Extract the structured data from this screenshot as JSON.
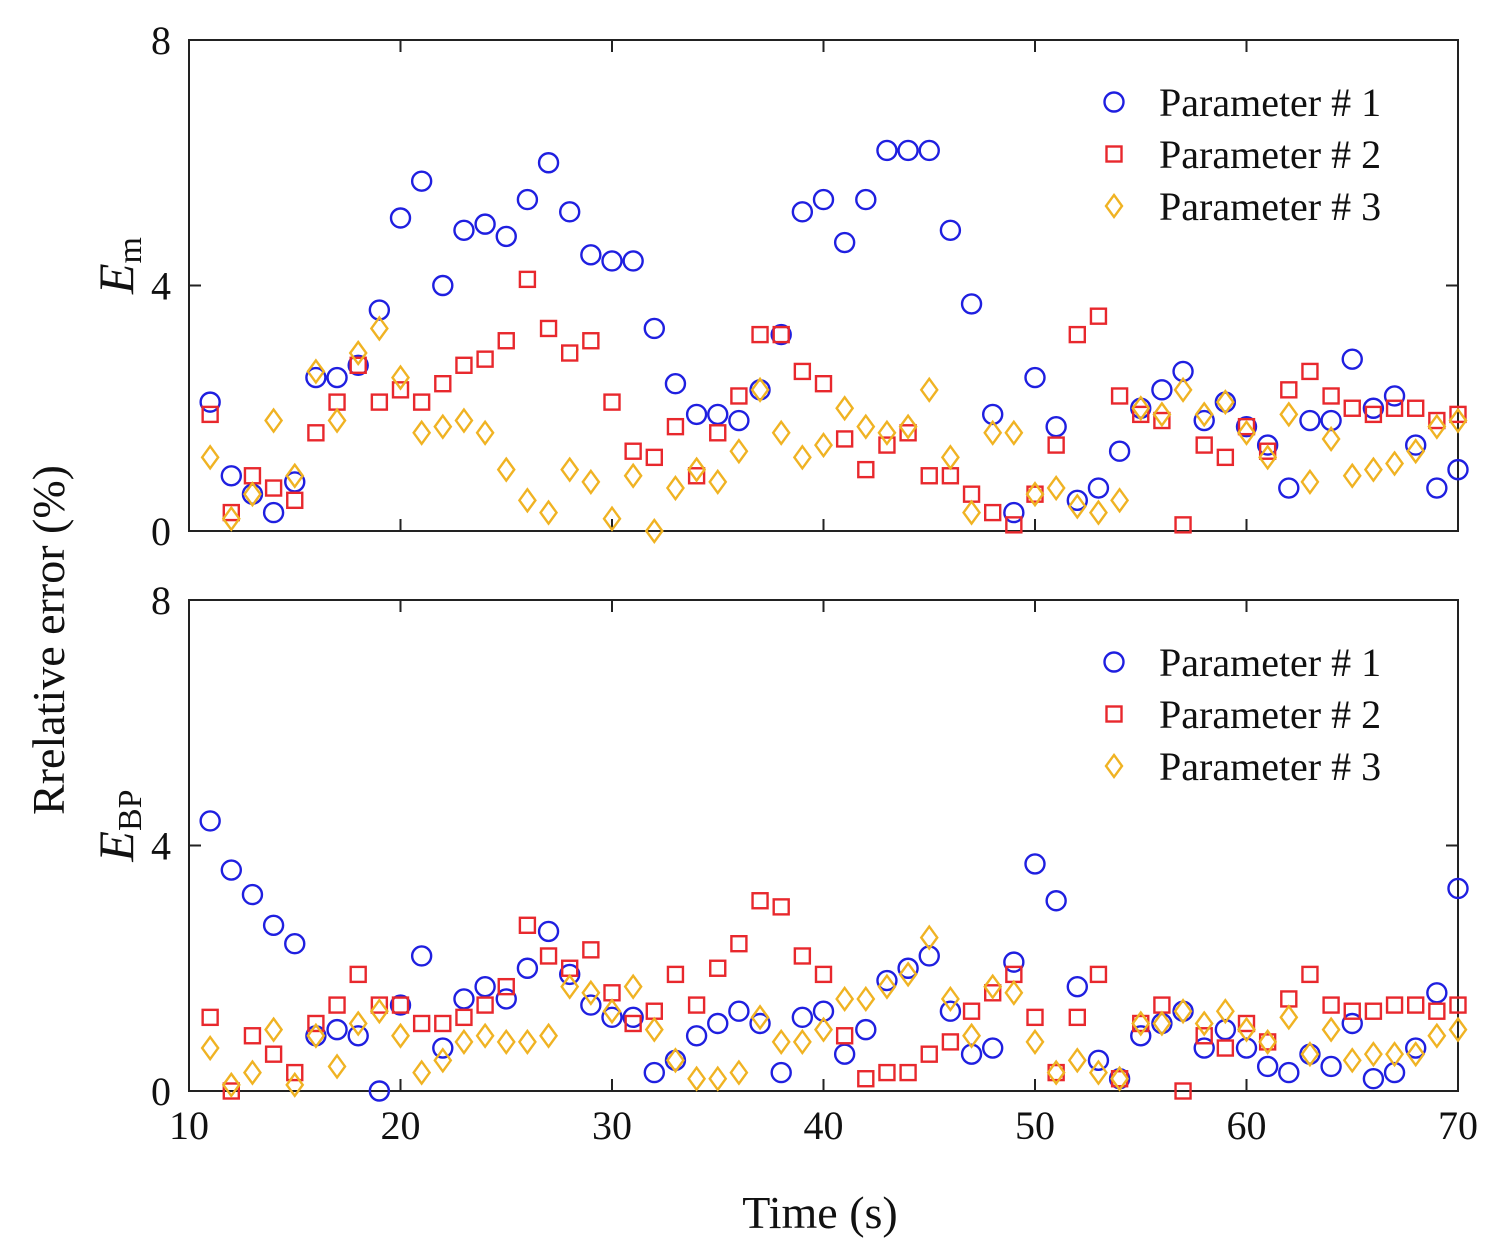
{
  "chart_data": [
    {
      "type": "scatter",
      "panel_label_main": "E",
      "panel_label_sub": "m",
      "xlim": [
        10,
        70
      ],
      "ylim": [
        0,
        8
      ],
      "x_ticks": [
        "10",
        "20",
        "30",
        "40",
        "50",
        "60",
        "70"
      ],
      "y_ticks": [
        "0",
        "4",
        "8"
      ],
      "legend_position": "top-right",
      "grid": false,
      "x": [
        11,
        12,
        13,
        14,
        15,
        16,
        17,
        18,
        19,
        20,
        21,
        22,
        23,
        24,
        25,
        26,
        27,
        28,
        29,
        30,
        31,
        32,
        33,
        34,
        35,
        36,
        37,
        38,
        39,
        40,
        41,
        42,
        43,
        44,
        45,
        46,
        47,
        48,
        49,
        50,
        51,
        52,
        53,
        54,
        55,
        56,
        57,
        58,
        59,
        60,
        61,
        62,
        63,
        64,
        65,
        66,
        67,
        68,
        69,
        70
      ],
      "series": [
        {
          "name": "Parameter # 1",
          "marker": "circle",
          "color": "#1f1fe0",
          "values": [
            2.1,
            0.9,
            0.6,
            0.3,
            0.8,
            2.5,
            2.5,
            2.7,
            3.6,
            5.1,
            5.7,
            4.0,
            4.9,
            5.0,
            4.8,
            5.4,
            6.0,
            5.2,
            4.5,
            4.4,
            4.4,
            3.3,
            2.4,
            1.9,
            1.9,
            1.8,
            2.3,
            3.2,
            5.2,
            5.4,
            4.7,
            5.4,
            6.2,
            6.2,
            6.2,
            4.9,
            3.7,
            1.9,
            0.3,
            2.5,
            1.7,
            0.5,
            0.7,
            1.3,
            2.0,
            2.3,
            2.6,
            1.8,
            2.1,
            1.7,
            1.4,
            0.7,
            1.8,
            1.8,
            2.8,
            2.0,
            2.2,
            1.4,
            0.7,
            1.0
          ]
        },
        {
          "name": "Parameter # 2",
          "marker": "square",
          "color": "#e8282d",
          "values": [
            1.9,
            0.3,
            0.9,
            0.7,
            0.5,
            1.6,
            2.1,
            2.7,
            2.1,
            2.3,
            2.1,
            2.4,
            2.7,
            2.8,
            3.1,
            4.1,
            3.3,
            2.9,
            3.1,
            2.1,
            1.3,
            1.2,
            1.7,
            0.9,
            1.6,
            2.2,
            3.2,
            3.2,
            2.6,
            2.4,
            1.5,
            1.0,
            1.4,
            1.6,
            0.9,
            0.9,
            0.6,
            0.3,
            0.1,
            0.6,
            1.4,
            3.2,
            3.5,
            2.2,
            1.9,
            1.8,
            0.1,
            1.4,
            1.2,
            1.7,
            1.3,
            2.3,
            2.6,
            2.2,
            2.0,
            1.9,
            2.0,
            2.0,
            1.8,
            1.9
          ]
        },
        {
          "name": "Parameter # 3",
          "marker": "diamond",
          "color": "#f0b323",
          "values": [
            1.2,
            0.2,
            0.6,
            1.8,
            0.9,
            2.6,
            1.8,
            2.9,
            3.3,
            2.5,
            1.6,
            1.7,
            1.8,
            1.6,
            1.0,
            0.5,
            0.3,
            1.0,
            0.8,
            0.2,
            0.9,
            0.0,
            0.7,
            1.0,
            0.8,
            1.3,
            2.3,
            1.6,
            1.2,
            1.4,
            2.0,
            1.7,
            1.6,
            1.7,
            2.3,
            1.2,
            0.3,
            1.6,
            1.6,
            0.6,
            0.7,
            0.4,
            0.3,
            0.5,
            2.0,
            1.9,
            2.3,
            1.9,
            2.1,
            1.6,
            1.2,
            1.9,
            0.8,
            1.5,
            0.9,
            1.0,
            1.1,
            1.3,
            1.7,
            1.8
          ]
        }
      ]
    },
    {
      "type": "scatter",
      "panel_label_main": "E",
      "panel_label_sub": "BP",
      "xlim": [
        10,
        70
      ],
      "ylim": [
        0,
        8
      ],
      "x_ticks": [
        "10",
        "20",
        "30",
        "40",
        "50",
        "60",
        "70"
      ],
      "y_ticks": [
        "0",
        "4",
        "8"
      ],
      "legend_position": "top-right",
      "grid": false,
      "x": [
        11,
        12,
        13,
        14,
        15,
        16,
        17,
        18,
        19,
        20,
        21,
        22,
        23,
        24,
        25,
        26,
        27,
        28,
        29,
        30,
        31,
        32,
        33,
        34,
        35,
        36,
        37,
        38,
        39,
        40,
        41,
        42,
        43,
        44,
        45,
        46,
        47,
        48,
        49,
        50,
        51,
        52,
        53,
        54,
        55,
        56,
        57,
        58,
        59,
        60,
        61,
        62,
        63,
        64,
        65,
        66,
        67,
        68,
        69,
        70
      ],
      "series": [
        {
          "name": "Parameter # 1",
          "marker": "circle",
          "color": "#1f1fe0",
          "values": [
            4.4,
            3.6,
            3.2,
            2.7,
            2.4,
            0.9,
            1.0,
            0.9,
            0.0,
            1.4,
            2.2,
            0.7,
            1.5,
            1.7,
            1.5,
            2.0,
            2.6,
            1.9,
            1.4,
            1.2,
            1.2,
            0.3,
            0.5,
            0.9,
            1.1,
            1.3,
            1.1,
            0.3,
            1.2,
            1.3,
            0.6,
            1.0,
            1.8,
            2.0,
            2.2,
            1.3,
            0.6,
            0.7,
            2.1,
            3.7,
            3.1,
            1.7,
            0.5,
            0.2,
            0.9,
            1.1,
            1.3,
            0.7,
            1.0,
            0.7,
            0.4,
            0.3,
            0.6,
            0.4,
            1.1,
            0.2,
            0.3,
            0.7,
            1.6,
            3.3
          ]
        },
        {
          "name": "Parameter # 2",
          "marker": "square",
          "color": "#e8282d",
          "values": [
            1.2,
            0.0,
            0.9,
            0.6,
            0.3,
            1.1,
            1.4,
            1.9,
            1.4,
            1.4,
            1.1,
            1.1,
            1.2,
            1.4,
            1.7,
            2.7,
            2.2,
            2.0,
            2.3,
            1.6,
            1.1,
            1.3,
            1.9,
            1.4,
            2.0,
            2.4,
            3.1,
            3.0,
            2.2,
            1.9,
            0.9,
            0.2,
            0.3,
            0.3,
            0.6,
            0.8,
            1.3,
            1.6,
            1.9,
            1.2,
            0.3,
            1.2,
            1.9,
            0.2,
            1.1,
            1.4,
            0.0,
            0.9,
            0.7,
            1.1,
            0.8,
            1.5,
            1.9,
            1.4,
            1.3,
            1.3,
            1.4,
            1.4,
            1.3,
            1.4
          ]
        },
        {
          "name": "Parameter # 3",
          "marker": "diamond",
          "color": "#f0b323",
          "values": [
            0.7,
            0.1,
            0.3,
            1.0,
            0.1,
            0.9,
            0.4,
            1.1,
            1.3,
            0.9,
            0.3,
            0.5,
            0.8,
            0.9,
            0.8,
            0.8,
            0.9,
            1.7,
            1.6,
            1.3,
            1.7,
            1.0,
            0.5,
            0.2,
            0.2,
            0.3,
            1.2,
            0.8,
            0.8,
            1.0,
            1.5,
            1.5,
            1.7,
            1.9,
            2.5,
            1.5,
            0.9,
            1.7,
            1.6,
            0.8,
            0.3,
            0.5,
            0.3,
            0.2,
            1.1,
            1.1,
            1.3,
            1.1,
            1.3,
            1.0,
            0.8,
            1.2,
            0.6,
            1.0,
            0.5,
            0.6,
            0.6,
            0.6,
            0.9,
            1.0
          ]
        }
      ]
    }
  ],
  "y_axis_title": "Rrelative error (%)",
  "x_axis_title": "Time (s)"
}
